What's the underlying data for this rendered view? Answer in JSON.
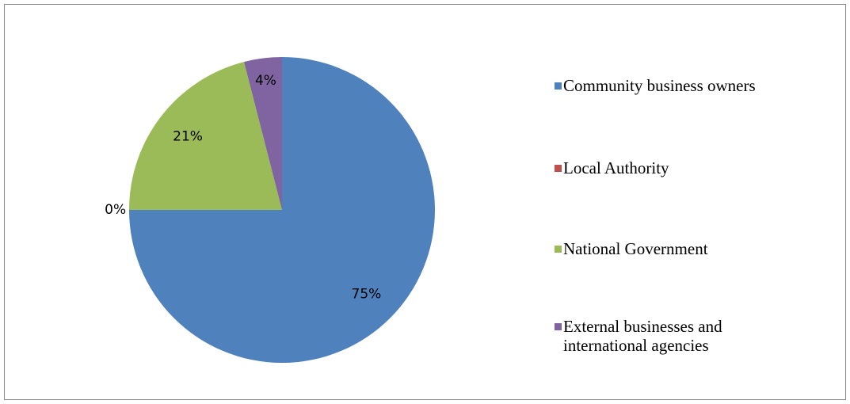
{
  "chart_data": {
    "type": "pie",
    "categories": [
      "Community business owners",
      "Local Authority",
      "National Government",
      "External businesses and international agencies"
    ],
    "values": [
      75,
      0,
      21,
      4
    ],
    "value_labels": [
      "75%",
      "0%",
      "21%",
      "4%"
    ],
    "colors": [
      "#4f81bd",
      "#c0504d",
      "#9bbb59",
      "#8064a2"
    ],
    "legend": "right"
  }
}
